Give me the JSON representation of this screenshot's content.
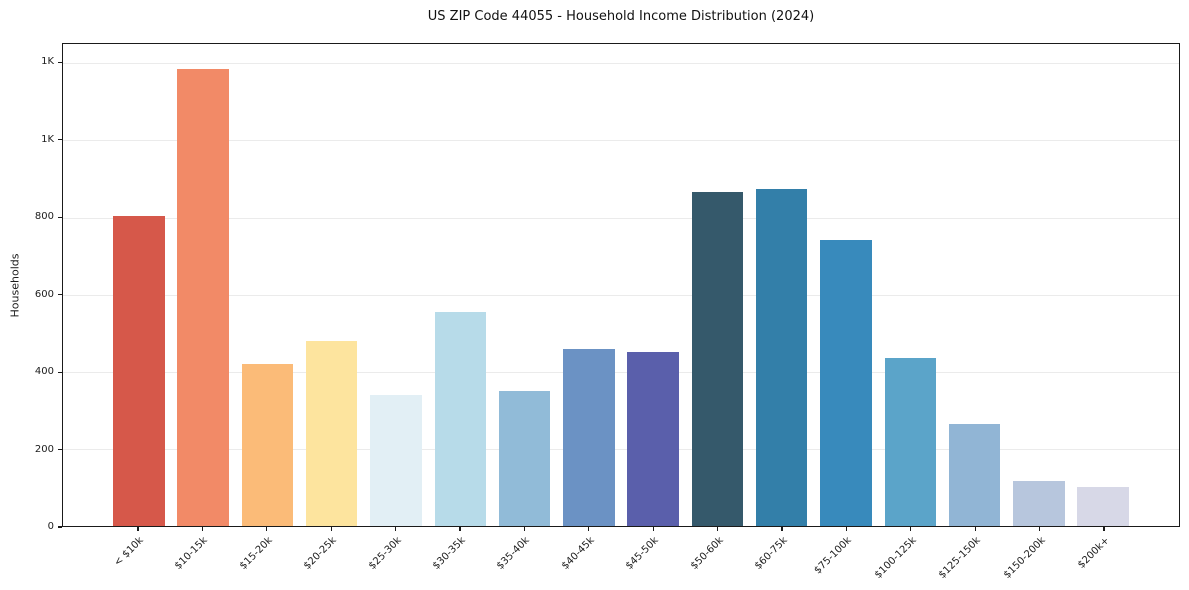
{
  "title": "US ZIP Code 44055 - Household Income Distribution (2024)",
  "chart_data": {
    "type": "bar",
    "title": "US ZIP Code 44055 - Household Income Distribution (2024)",
    "xlabel": "",
    "ylabel": "Households",
    "categories": [
      "< $10k",
      "$10-15k",
      "$15-20k",
      "$20-25k",
      "$25-30k",
      "$30-35k",
      "$35-40k",
      "$40-45k",
      "$45-50k",
      "$50-60k",
      "$60-75k",
      "$75-100k",
      "$100-125k",
      "$125-150k",
      "$150-200k",
      "$200k+"
    ],
    "values": [
      805,
      1185,
      420,
      480,
      340,
      555,
      350,
      460,
      450,
      865,
      875,
      742,
      435,
      265,
      118,
      100
    ],
    "bar_colors": [
      "#d6584a",
      "#f28a67",
      "#fbbb78",
      "#fde49e",
      "#e2eff5",
      "#b7dbe9",
      "#91bbd8",
      "#6b92c4",
      "#5a5fab",
      "#35596b",
      "#337fa9",
      "#388abc",
      "#5ba4c9",
      "#91b5d5",
      "#b7c6dd",
      "#d7d8e7"
    ],
    "ylim": [
      0,
      1250
    ],
    "yticks": [
      {
        "v": 0,
        "label": "0"
      },
      {
        "v": 200,
        "label": "200"
      },
      {
        "v": 400,
        "label": "400"
      },
      {
        "v": 600,
        "label": "600"
      },
      {
        "v": 800,
        "label": "800"
      },
      {
        "v": 1000,
        "label": "1K"
      },
      {
        "v": 1200,
        "label": "1K"
      }
    ],
    "grid": "horizontal",
    "legend": "none"
  }
}
